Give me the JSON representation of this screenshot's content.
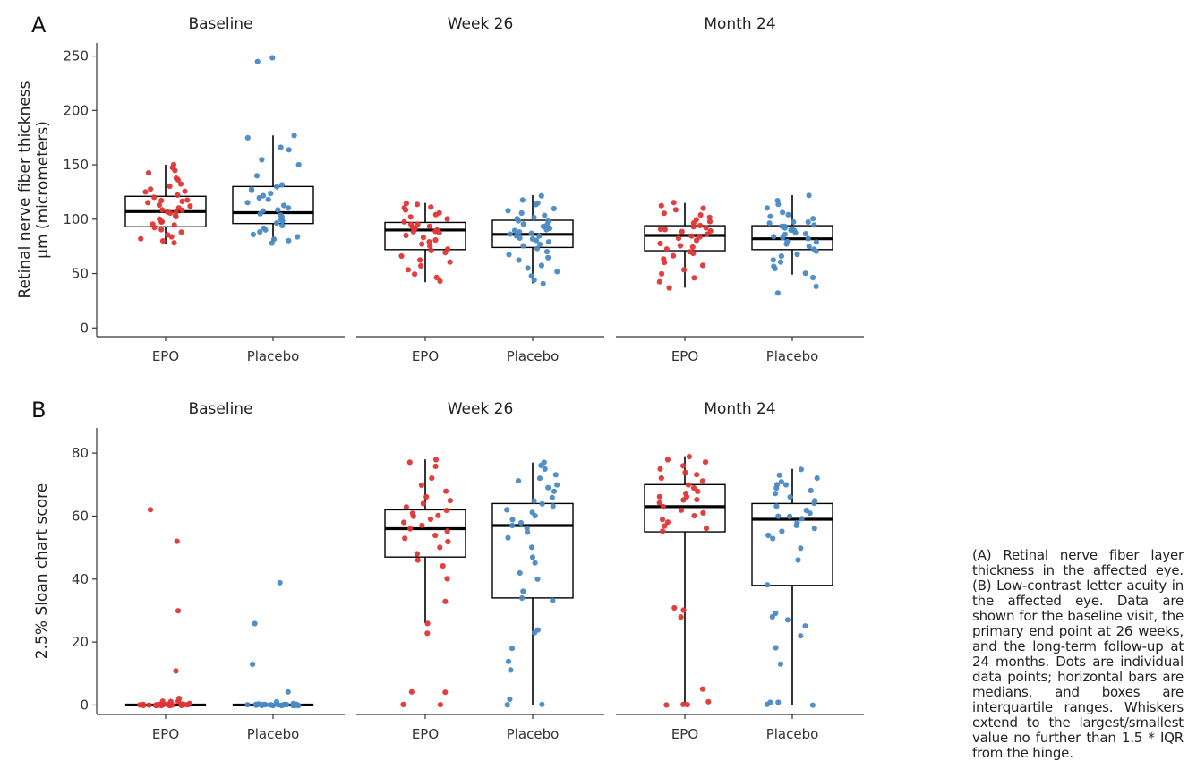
{
  "caption": "(A) Retinal nerve fiber layer thickness in the affected eye. (B) Low-contrast letter acuity in the affected eye. Data are shown for the baseline visit, the primary end point at 26 weeks, and the long-term follow-up at 24 months. Dots are individual data points; horizontal bars are medians, and boxes are interquartile ranges. Whiskers extend to the largest/smallest value no further than 1.5 * IQR from the hinge.",
  "colors": {
    "EPO": "#e03535",
    "Placebo": "#4a8ac4",
    "box": "#000000",
    "axis": "#333333"
  },
  "chart_data": [
    {
      "type": "box",
      "panel_label": "A",
      "ylabel": [
        "Retinal nerve fiber thickness",
        "µm (micrometers)"
      ],
      "ylim": [
        -8,
        262
      ],
      "yticks": [
        0,
        50,
        100,
        150,
        200,
        250
      ],
      "facets": [
        "Baseline",
        "Week 26",
        "Month 24"
      ],
      "categories": [
        "EPO",
        "Placebo"
      ],
      "groups": [
        {
          "facet": "Baseline",
          "category": "EPO",
          "q1": 93,
          "median": 107,
          "q3": 121,
          "whisker_low": 77,
          "whisker_high": 150,
          "points": [
            150,
            148,
            145,
            143,
            138,
            136,
            132,
            130,
            128,
            126,
            125,
            122,
            120,
            118,
            117,
            116,
            115,
            113,
            112,
            110,
            109,
            108,
            107,
            106,
            105,
            103,
            102,
            100,
            98,
            97,
            95,
            94,
            92,
            90,
            88,
            86,
            84,
            82,
            80,
            78
          ]
        },
        {
          "facet": "Baseline",
          "category": "Placebo",
          "q1": 96,
          "median": 106,
          "q3": 130,
          "whisker_low": 80,
          "whisker_high": 177,
          "points": [
            249,
            245,
            177,
            175,
            166,
            164,
            155,
            150,
            140,
            132,
            130,
            128,
            126,
            124,
            122,
            120,
            118,
            115,
            113,
            111,
            109,
            107,
            105,
            104,
            102,
            100,
            98,
            96,
            94,
            92,
            90,
            88,
            86,
            84,
            82,
            80,
            78
          ]
        },
        {
          "facet": "Week 26",
          "category": "EPO",
          "q1": 72,
          "median": 90,
          "q3": 97,
          "whisker_low": 42,
          "whisker_high": 115,
          "points": [
            115,
            113,
            111,
            110,
            108,
            106,
            104,
            102,
            100,
            98,
            96,
            95,
            94,
            93,
            92,
            91,
            90,
            89,
            88,
            87,
            85,
            83,
            81,
            79,
            77,
            75,
            73,
            71,
            69,
            66,
            63,
            60,
            57,
            54,
            50,
            47,
            43
          ]
        },
        {
          "facet": "Week 26",
          "category": "Placebo",
          "q1": 74,
          "median": 86,
          "q3": 99,
          "whisker_low": 41,
          "whisker_high": 122,
          "points": [
            122,
            118,
            115,
            113,
            110,
            108,
            106,
            104,
            102,
            100,
            99,
            98,
            96,
            95,
            93,
            92,
            90,
            89,
            88,
            87,
            86,
            85,
            84,
            83,
            82,
            80,
            79,
            77,
            75,
            73,
            70,
            68,
            65,
            62,
            58,
            55,
            52,
            48,
            44,
            41
          ]
        },
        {
          "facet": "Month 24",
          "category": "EPO",
          "q1": 71,
          "median": 85,
          "q3": 94,
          "whisker_low": 37,
          "whisker_high": 115,
          "points": [
            115,
            112,
            110,
            108,
            106,
            104,
            102,
            100,
            98,
            96,
            94,
            93,
            92,
            91,
            90,
            89,
            88,
            86,
            85,
            84,
            82,
            80,
            78,
            76,
            74,
            72,
            70,
            68,
            66,
            63,
            60,
            57,
            54,
            50,
            46,
            42,
            37
          ]
        },
        {
          "facet": "Month 24",
          "category": "Placebo",
          "q1": 72,
          "median": 82,
          "q3": 94,
          "whisker_low": 49,
          "whisker_high": 122,
          "points": [
            122,
            117,
            114,
            110,
            106,
            104,
            102,
            100,
            98,
            97,
            96,
            95,
            94,
            93,
            92,
            91,
            90,
            89,
            88,
            87,
            86,
            84,
            83,
            82,
            80,
            79,
            77,
            75,
            73,
            70,
            68,
            66,
            63,
            60,
            57,
            54,
            50,
            46,
            38,
            32
          ]
        }
      ]
    },
    {
      "type": "box",
      "panel_label": "B",
      "ylabel": [
        "2.5% Sloan chart score"
      ],
      "ylim": [
        -3,
        88
      ],
      "yticks": [
        0,
        20,
        40,
        60,
        80
      ],
      "facets": [
        "Baseline",
        "Week 26",
        "Month 24"
      ],
      "categories": [
        "EPO",
        "Placebo"
      ],
      "groups": [
        {
          "facet": "Baseline",
          "category": "EPO",
          "q1": 0,
          "median": 0,
          "q3": 0,
          "whisker_low": 0,
          "whisker_high": 0,
          "points": [
            62,
            52,
            30,
            11,
            2,
            1,
            1,
            1,
            0.5,
            0.5,
            0.5,
            0,
            0,
            0,
            0,
            0,
            0,
            0,
            0,
            0,
            0,
            0,
            0,
            0,
            0,
            0,
            0,
            0,
            0,
            0,
            0,
            0,
            0,
            0,
            0,
            0
          ]
        },
        {
          "facet": "Baseline",
          "category": "Placebo",
          "q1": 0,
          "median": 0,
          "q3": 0,
          "whisker_low": 0,
          "whisker_high": 0,
          "points": [
            39,
            26,
            13,
            4,
            1,
            0.5,
            0.5,
            0,
            0,
            0,
            0,
            0,
            0,
            0,
            0,
            0,
            0,
            0,
            0,
            0,
            0,
            0,
            0,
            0,
            0,
            0,
            0,
            0,
            0,
            0,
            0,
            0,
            0,
            0,
            0,
            0
          ]
        },
        {
          "facet": "Week 26",
          "category": "EPO",
          "q1": 47,
          "median": 56,
          "q3": 62,
          "whisker_low": 26,
          "whisker_high": 78,
          "points": [
            78,
            77,
            76,
            72,
            70,
            68,
            66,
            65,
            64,
            63,
            62,
            61,
            60,
            60,
            59,
            58,
            57,
            56,
            55,
            54,
            53,
            52,
            50,
            48,
            46,
            44,
            40,
            33,
            26,
            23,
            4,
            4,
            0,
            0
          ]
        },
        {
          "facet": "Week 26",
          "category": "Placebo",
          "q1": 34,
          "median": 57,
          "q3": 64,
          "whisker_low": 0,
          "whisker_high": 77,
          "points": [
            77,
            76,
            75,
            73,
            72,
            71,
            70,
            69,
            68,
            66,
            65,
            64,
            63,
            62,
            61,
            60,
            59,
            58,
            57,
            56,
            55,
            53,
            50,
            47,
            45,
            42,
            40,
            36,
            34,
            33,
            24,
            23,
            18,
            14,
            11,
            2,
            0,
            0
          ]
        },
        {
          "facet": "Month 24",
          "category": "EPO",
          "q1": 55,
          "median": 63,
          "q3": 70,
          "whisker_low": 0,
          "whisker_high": 79,
          "points": [
            79,
            78,
            77,
            76,
            75,
            74,
            73,
            72,
            71,
            70,
            69,
            68,
            67,
            66,
            66,
            65,
            65,
            64,
            63,
            62,
            61,
            60,
            59,
            58,
            57,
            56,
            55,
            31,
            30,
            28,
            5,
            1,
            0,
            0,
            0
          ]
        },
        {
          "facet": "Month 24",
          "category": "Placebo",
          "q1": 38,
          "median": 59,
          "q3": 64,
          "whisker_low": 0,
          "whisker_high": 75,
          "points": [
            75,
            73,
            72,
            71,
            70,
            70,
            69,
            68,
            67,
            66,
            65,
            64,
            63,
            62,
            61,
            60,
            60,
            59,
            58,
            57,
            56,
            55,
            54,
            53,
            50,
            46,
            38,
            29,
            28,
            27,
            25,
            22,
            18,
            13,
            1,
            1,
            0,
            0
          ]
        }
      ]
    }
  ]
}
